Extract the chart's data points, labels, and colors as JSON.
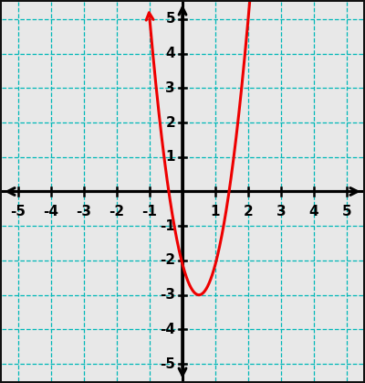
{
  "xlim": [
    -5.5,
    5.5
  ],
  "ylim": [
    -5.5,
    5.5
  ],
  "xticks": [
    -5,
    -4,
    -3,
    -2,
    -1,
    1,
    2,
    3,
    4,
    5
  ],
  "yticks": [
    -5,
    -4,
    -3,
    -2,
    -1,
    1,
    2,
    3,
    4,
    5
  ],
  "outer_bg": "#111111",
  "plot_bg_color": "#e8e8e8",
  "grid_color": "#00b8b8",
  "curve_color": "#ee0000",
  "curve_linewidth": 2.2,
  "axis_color": "#000000",
  "x_start": -1.0,
  "x_end": 2.3,
  "vertex_x": 0.5,
  "vertex_y": -3.0,
  "k": 3.5556,
  "tick_label_fontsize": 11,
  "figsize": [
    4.0,
    4.19
  ],
  "dpi": 100
}
